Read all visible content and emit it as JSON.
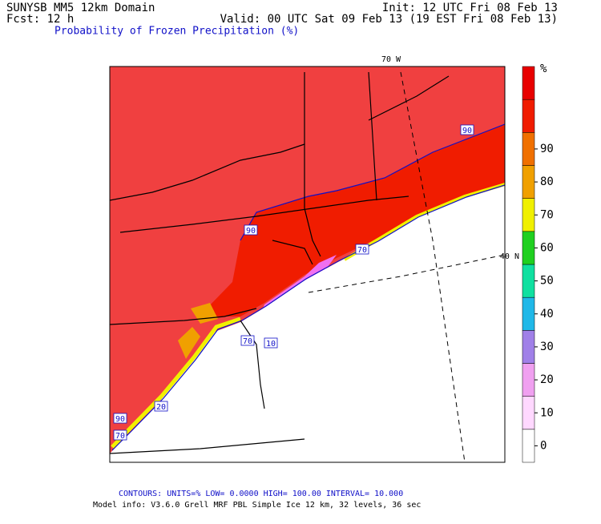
{
  "header": {
    "model": "SUNYSB MM5 12km Domain",
    "forecast": "Fcst:  12 h",
    "init": "Init: 12 UTC Fri 08 Feb 13",
    "valid": "Valid: 00 UTC Sat 09 Feb 13 (19 EST Fri 08 Feb 13)",
    "title": "Probability of Frozen Precipitation (%)"
  },
  "map": {
    "longitude_label": "70 W",
    "latitude_label": "40 N",
    "contour_labels": [
      90,
      90,
      70,
      70,
      10,
      20,
      90,
      70
    ]
  },
  "colorbar": {
    "unit": "%",
    "ticks": [
      0,
      10,
      20,
      30,
      40,
      50,
      60,
      70,
      80,
      90
    ],
    "colors": [
      "#ffffff",
      "#ffd8ff",
      "#f0a0f0",
      "#a080e8",
      "#20b8e8",
      "#10e0a0",
      "#20d020",
      "#f0f000",
      "#f0a000",
      "#f07000",
      "#f01c00",
      "#e80000"
    ]
  },
  "footer": {
    "contours": "CONTOURS:  UNITS=%   LOW=  0.0000     HIGH=  100.00     INTERVAL=   10.000",
    "model_info": "Model info: V3.6.0   Grell     MRF PBL    Simple Ice    12 km,  32 levels,   36 sec"
  }
}
